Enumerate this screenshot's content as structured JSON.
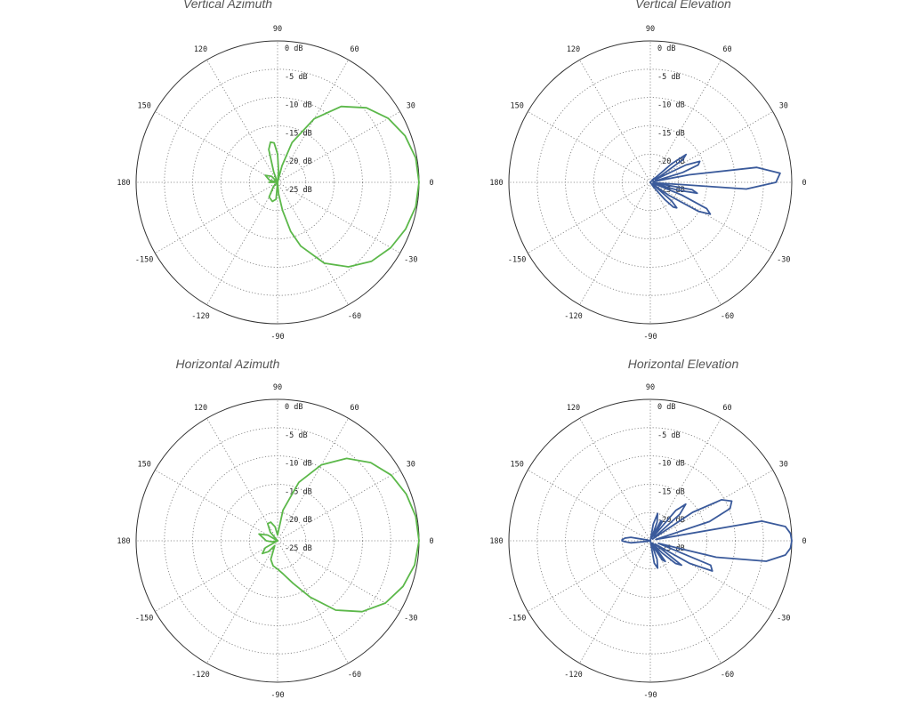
{
  "chart_data": [
    {
      "type": "polar",
      "title": "Vertical Azimuth",
      "angle_unit": "degrees",
      "angle_labels": [
        "0",
        "30",
        "60",
        "90",
        "120",
        "150",
        "180",
        "-150",
        "-120",
        "-90",
        "-60",
        "-30"
      ],
      "ring_labels": [
        "0 dB",
        "-5 dB",
        "-10 dB",
        "-15 dB",
        "-20 dB",
        "-25 dB"
      ],
      "rlim": [
        -25,
        0
      ],
      "grid": true,
      "color": "#5cb84a",
      "series": [
        {
          "theta": [
            -180,
            -150,
            -135,
            -120,
            -105,
            -95,
            -90,
            -85,
            -80,
            -75,
            -70,
            -60,
            -50,
            -40,
            -30,
            -20,
            -10,
            0,
            10,
            20,
            30,
            40,
            50,
            60,
            70,
            75,
            80,
            85,
            90,
            95,
            100,
            105,
            110,
            115,
            120,
            135,
            150,
            165,
            170,
            175,
            180
          ],
          "r": [
            -23.5,
            -25,
            -24,
            -22,
            -21.5,
            -22,
            -25,
            -23,
            -20,
            -16,
            -13,
            -8.5,
            -5.5,
            -3.3,
            -1.9,
            -0.9,
            -0.2,
            0,
            -0.2,
            -1,
            -2.4,
            -4.5,
            -7.5,
            -12,
            -17.5,
            -22,
            -25,
            -23,
            -20,
            -18,
            -17.8,
            -19,
            -23,
            -24.5,
            -25,
            -23.5,
            -22.5,
            -23.5,
            -25,
            -24,
            -23.5
          ]
        }
      ]
    },
    {
      "type": "polar",
      "title": "Vertical Elevation",
      "angle_unit": "degrees",
      "angle_labels": [
        "0",
        "30",
        "60",
        "90",
        "120",
        "150",
        "180",
        "-150",
        "-120",
        "-90",
        "-60",
        "-30"
      ],
      "ring_labels": [
        "0 dB",
        "-5 dB",
        "-10 dB",
        "-15 dB",
        "-20 dB",
        "-25 dB"
      ],
      "rlim": [
        -25,
        0
      ],
      "grid": true,
      "color": "#3a5a9b",
      "series": [
        {
          "theta": [
            -180,
            -150,
            -120,
            -90,
            -75,
            -60,
            -55,
            -50,
            -47,
            -44,
            -41,
            -38,
            -35,
            -31,
            -28,
            -25,
            -22,
            -19,
            -16,
            -13,
            -10,
            -7,
            -4,
            0,
            4,
            8,
            11,
            14,
            17,
            20,
            23,
            26,
            29,
            32,
            35,
            38,
            41,
            44,
            47,
            50,
            55,
            60,
            90,
            120,
            150,
            180
          ],
          "r": [
            -25,
            -25,
            -25,
            -25,
            -25,
            -25,
            -24,
            -21,
            -19,
            -18.5,
            -20,
            -24.5,
            -21,
            -15,
            -13,
            -14,
            -19,
            -24.5,
            -20,
            -16.5,
            -17.5,
            -24.5,
            -8,
            -2.8,
            -2,
            -6,
            -18,
            -24.5,
            -19,
            -16,
            -15.5,
            -18,
            -24,
            -23,
            -18,
            -17,
            -20,
            -24.5,
            -24,
            -25,
            -25,
            -25,
            -25,
            -25,
            -25,
            -25
          ]
        }
      ]
    },
    {
      "type": "polar",
      "title": "Horizontal Azimuth",
      "angle_unit": "degrees",
      "angle_labels": [
        "0",
        "30",
        "60",
        "90",
        "120",
        "150",
        "180",
        "-150",
        "-120",
        "-90",
        "-60",
        "-30"
      ],
      "ring_labels": [
        "0 dB",
        "-5 dB",
        "-10 dB",
        "-15 dB",
        "-20 dB",
        "-25 dB"
      ],
      "rlim": [
        -25,
        0
      ],
      "grid": true,
      "color": "#5cb84a",
      "series": [
        {
          "theta": [
            -180,
            -170,
            -160,
            -150,
            -140,
            -130,
            -120,
            -110,
            -100,
            -90,
            -80,
            -70,
            -60,
            -50,
            -40,
            -30,
            -20,
            -10,
            0,
            10,
            20,
            30,
            40,
            50,
            60,
            70,
            80,
            90,
            100,
            110,
            120,
            130,
            140,
            150,
            160,
            170,
            180
          ],
          "r": [
            -23,
            -24,
            -25,
            -22.5,
            -21.5,
            -22.5,
            -24,
            -21.5,
            -20.5,
            -20,
            -19,
            -17,
            -13.5,
            -9,
            -5.5,
            -3,
            -1.4,
            -0.4,
            0,
            -0.2,
            -0.8,
            -1.8,
            -3.5,
            -6,
            -9.5,
            -14,
            -19.5,
            -24,
            -22.5,
            -21.5,
            -21.5,
            -23,
            -25,
            -23,
            -21.5,
            -22.5,
            -23
          ]
        }
      ]
    },
    {
      "type": "polar",
      "title": "Horizontal Elevation",
      "angle_unit": "degrees",
      "angle_labels": [
        "0",
        "30",
        "60",
        "90",
        "120",
        "150",
        "180",
        "-150",
        "-120",
        "-90",
        "-60",
        "-30"
      ],
      "ring_labels": [
        "0 dB",
        "-5 dB",
        "-10 dB",
        "-15 dB",
        "-20 dB",
        "-25 dB"
      ],
      "rlim": [
        -25,
        0
      ],
      "grid": true,
      "color": "#3a5a9b",
      "series": [
        {
          "theta": [
            -180,
            -178,
            -174,
            -170,
            -166,
            -160,
            -140,
            -120,
            -100,
            -85,
            -80,
            -75,
            -70,
            -66,
            -62,
            -58,
            -54,
            -50,
            -46,
            -42,
            -38,
            -34,
            -30,
            -26,
            -22,
            -18,
            -14,
            -10,
            -6,
            -3,
            0,
            3,
            6,
            10,
            14,
            18,
            22,
            26,
            30,
            34,
            38,
            42,
            46,
            50,
            54,
            58,
            62,
            66,
            70,
            75,
            80,
            85,
            100,
            120,
            140,
            160,
            166,
            170,
            174,
            178,
            180
          ],
          "r": [
            -20,
            -20.5,
            -21.5,
            -24.5,
            -25,
            -25,
            -25,
            -25,
            -25,
            -25,
            -21,
            -20,
            -21.5,
            -24.5,
            -23.5,
            -21,
            -20.5,
            -24.5,
            -22,
            -19,
            -18,
            -24,
            -17,
            -12.8,
            -13.5,
            -23.5,
            -13,
            -4.2,
            -1,
            -0.2,
            0,
            -0.2,
            -1,
            -5,
            -24,
            -14,
            -9.8,
            -9,
            -10.5,
            -16,
            -24.5,
            -18,
            -16,
            -18,
            -24,
            -21,
            -21,
            -24.5,
            -21.5,
            -20,
            -22,
            -25,
            -25,
            -25,
            -25,
            -25,
            -24.5,
            -21.5,
            -20.5,
            -20,
            -20
          ]
        }
      ]
    }
  ]
}
